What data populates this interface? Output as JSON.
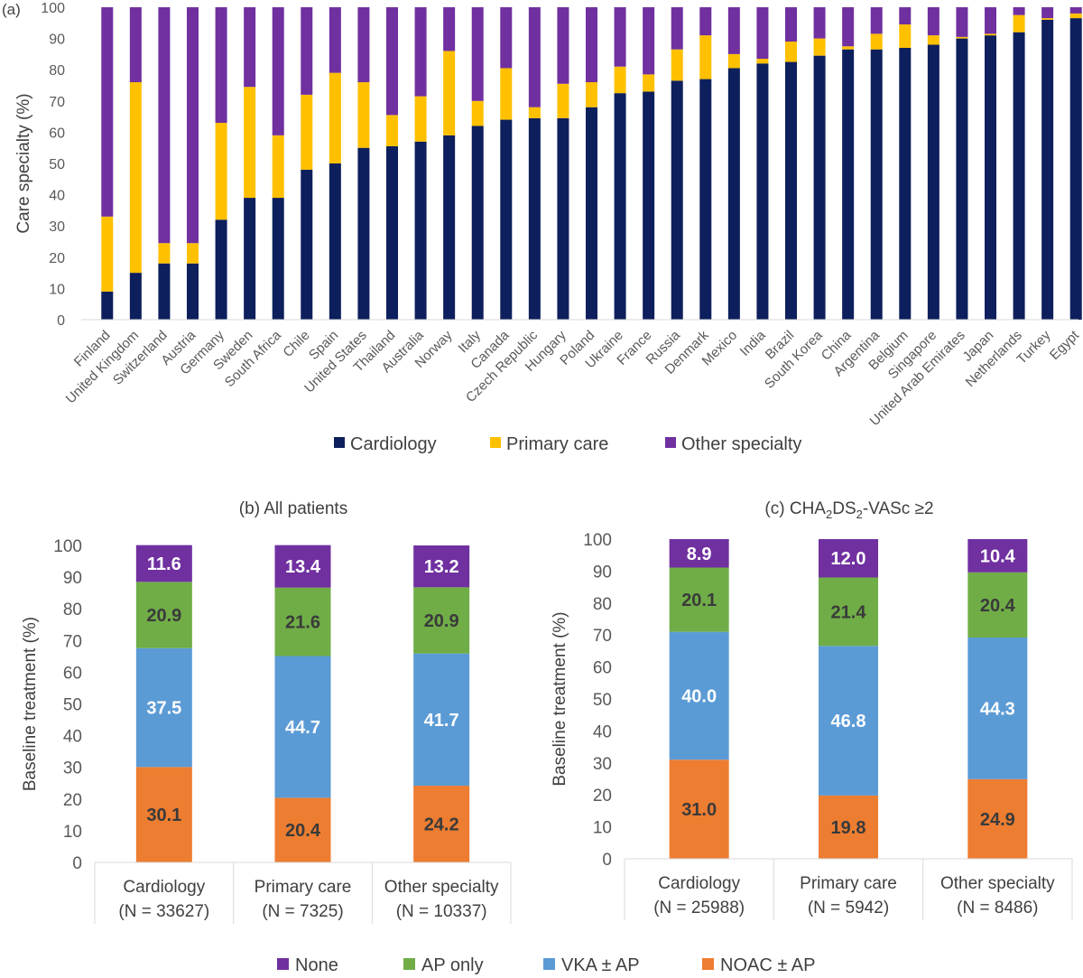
{
  "chart_data": [
    {
      "id": "a",
      "type": "bar",
      "stacked": true,
      "panel_label": "(a)",
      "title": "",
      "xlabel": "",
      "ylabel": "Care specialty (%)",
      "ylim": [
        0,
        100
      ],
      "yticks": [
        0,
        10,
        20,
        30,
        40,
        50,
        60,
        70,
        80,
        90,
        100
      ],
      "categories": [
        "Finland",
        "United Kingdom",
        "Switzerland",
        "Austria",
        "Germany",
        "Sweden",
        "South Africa",
        "Chile",
        "Spain",
        "United States",
        "Thailand",
        "Australia",
        "Norway",
        "Italy",
        "Canada",
        "Czech Republic",
        "Hungary",
        "Poland",
        "Ukraine",
        "France",
        "Russia",
        "Denmark",
        "Mexico",
        "India",
        "Brazil",
        "South Korea",
        "China",
        "Argentina",
        "Belgium",
        "Singapore",
        "United Arab Emirates",
        "Japan",
        "Netherlands",
        "Turkey",
        "Egypt"
      ],
      "series": [
        {
          "name": "Cardiology",
          "color": "#0d1f5c",
          "values": [
            9,
            15,
            18,
            18,
            32,
            39,
            39,
            48,
            50,
            55,
            55.5,
            57,
            59,
            62,
            64,
            64.5,
            64.5,
            68,
            72.5,
            73,
            76.5,
            77,
            80.5,
            82,
            82.5,
            84.5,
            86.5,
            86.5,
            87,
            88,
            90,
            91,
            92,
            96,
            96.5
          ]
        },
        {
          "name": "Primary care",
          "color": "#ffc000",
          "values": [
            24,
            61,
            6.5,
            6.5,
            31,
            35.5,
            20,
            24,
            29,
            21,
            10,
            14.5,
            27,
            8,
            16.5,
            3.5,
            11,
            8,
            8.5,
            5.5,
            10,
            14,
            4.5,
            1.5,
            6.5,
            5.5,
            1,
            5,
            7.5,
            3,
            0.5,
            0.5,
            5.5,
            0.5,
            1.5
          ]
        },
        {
          "name": "Other specialty",
          "color": "#7030a0",
          "values": [
            67,
            24,
            75.5,
            75.5,
            37,
            25.5,
            41,
            28,
            21,
            24,
            34.5,
            28.5,
            14,
            30,
            19.5,
            32,
            24.5,
            24,
            19,
            21.5,
            13.5,
            9,
            15,
            16.5,
            11,
            10,
            12.5,
            8.5,
            5.5,
            9,
            9.5,
            8.5,
            2.5,
            3.5,
            2
          ]
        }
      ],
      "legend": [
        "Cardiology",
        "Primary care",
        "Other specialty"
      ]
    },
    {
      "id": "b",
      "type": "bar",
      "stacked": true,
      "title": "(b) All patients",
      "xlabel": "",
      "ylabel": "Baseline treatment (%)",
      "ylim": [
        0,
        100
      ],
      "yticks": [
        0,
        10,
        20,
        30,
        40,
        50,
        60,
        70,
        80,
        90,
        100
      ],
      "categories": [
        {
          "line1": "Cardiology",
          "line2": "(N = 33627)"
        },
        {
          "line1": "Primary care",
          "line2": "(N = 7325)"
        },
        {
          "line1": "Other specialty",
          "line2": "(N = 10337)"
        }
      ],
      "series": [
        {
          "name": "NOAC ± AP",
          "color": "#ed7d31",
          "label_color": "#3a3a3a",
          "values": [
            30.1,
            20.4,
            24.2
          ]
        },
        {
          "name": "VKA ± AP",
          "color": "#5b9bd5",
          "label_color": "#ffffff",
          "values": [
            37.5,
            44.7,
            41.7
          ]
        },
        {
          "name": "AP only",
          "color": "#70ad47",
          "label_color": "#3a3a3a",
          "values": [
            20.9,
            21.6,
            20.9
          ]
        },
        {
          "name": "None",
          "color": "#7030a0",
          "label_color": "#ffffff",
          "values": [
            11.6,
            13.4,
            13.2
          ]
        }
      ]
    },
    {
      "id": "c",
      "type": "bar",
      "stacked": true,
      "title": "(c) CHA2DS2-VASc ≥2",
      "title_parts": {
        "prefix": "(c) CHA",
        "sub1": "2",
        "mid": "DS",
        "sub2": "2",
        "suffix": "-VASc ≥2"
      },
      "xlabel": "",
      "ylabel": "Baseline treatment (%)",
      "ylim": [
        0,
        100
      ],
      "yticks": [
        0,
        10,
        20,
        30,
        40,
        50,
        60,
        70,
        80,
        90,
        100
      ],
      "categories": [
        {
          "line1": "Cardiology",
          "line2": "(N = 25988)"
        },
        {
          "line1": "Primary care",
          "line2": "(N = 5942)"
        },
        {
          "line1": "Other specialty",
          "line2": "(N = 8486)"
        }
      ],
      "series": [
        {
          "name": "NOAC ± AP",
          "color": "#ed7d31",
          "label_color": "#3a3a3a",
          "values": [
            31.0,
            19.8,
            24.9
          ]
        },
        {
          "name": "VKA ± AP",
          "color": "#5b9bd5",
          "label_color": "#ffffff",
          "values": [
            40.0,
            46.8,
            44.3
          ]
        },
        {
          "name": "AP only",
          "color": "#70ad47",
          "label_color": "#3a3a3a",
          "values": [
            20.1,
            21.4,
            20.4
          ]
        },
        {
          "name": "None",
          "color": "#7030a0",
          "label_color": "#ffffff",
          "values": [
            8.9,
            12.0,
            10.4
          ]
        }
      ]
    }
  ],
  "bottom_legend": [
    {
      "name": "None",
      "color": "#7030a0"
    },
    {
      "name": "AP only",
      "color": "#70ad47"
    },
    {
      "name": "VKA ± AP",
      "color": "#5b9bd5"
    },
    {
      "name": "NOAC ± AP",
      "color": "#ed7d31"
    }
  ]
}
